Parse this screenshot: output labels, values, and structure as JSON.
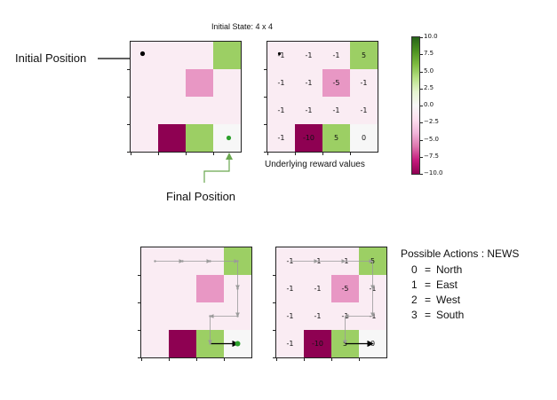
{
  "title": "Initial State: 4 x 4",
  "labels": {
    "initial_position": "Initial Position",
    "final_position": "Final Position",
    "reward_caption": "Underlying reward values"
  },
  "actions": {
    "heading": "Possible Actions : NEWS",
    "items": [
      {
        "code": "0",
        "eq": "=",
        "name": "North"
      },
      {
        "code": "1",
        "eq": "=",
        "name": "East"
      },
      {
        "code": "2",
        "eq": "=",
        "name": "West"
      },
      {
        "code": "3",
        "eq": "=",
        "name": "South"
      }
    ]
  },
  "grid": {
    "rewards": [
      [
        -1,
        -1,
        -1,
        5
      ],
      [
        -1,
        -1,
        -5,
        -1
      ],
      [
        -1,
        -1,
        -1,
        -1
      ],
      [
        -1,
        -10,
        5,
        0
      ]
    ],
    "reward_labels": [
      [
        "-1",
        "-1",
        "-1",
        "5"
      ],
      [
        "-1",
        "-1",
        "-5",
        "-1"
      ],
      [
        "-1",
        "-1",
        "-1",
        "-1"
      ],
      [
        "-1",
        "-10",
        "5",
        "0"
      ]
    ],
    "start": [
      0,
      0
    ],
    "goal": [
      3,
      3
    ],
    "path": [
      [
        0,
        0
      ],
      [
        0,
        1
      ],
      [
        0,
        2
      ],
      [
        0,
        3
      ],
      [
        1,
        3
      ],
      [
        2,
        3
      ],
      [
        2,
        2
      ],
      [
        3,
        2
      ],
      [
        3,
        3
      ]
    ]
  },
  "colorbar": {
    "ticks": [
      "10.0",
      "7.5",
      "5.0",
      "2.5",
      "0.0",
      "−2.5",
      "−5.0",
      "−7.5",
      "−10.0"
    ],
    "min": -10,
    "max": 10,
    "colors": [
      "#8e0152",
      "#c51b7d",
      "#de77ae",
      "#f1b6da",
      "#fde0ef",
      "#f7f7f7",
      "#e6f5d0",
      "#b8e186",
      "#7fbc41",
      "#4d9221",
      "#276419"
    ]
  },
  "colors": {
    "start_marker": "#000000",
    "goal_marker": "#2ca02c",
    "final_arrow": "#6aa84f",
    "path_faint": "#9a9a9a"
  }
}
